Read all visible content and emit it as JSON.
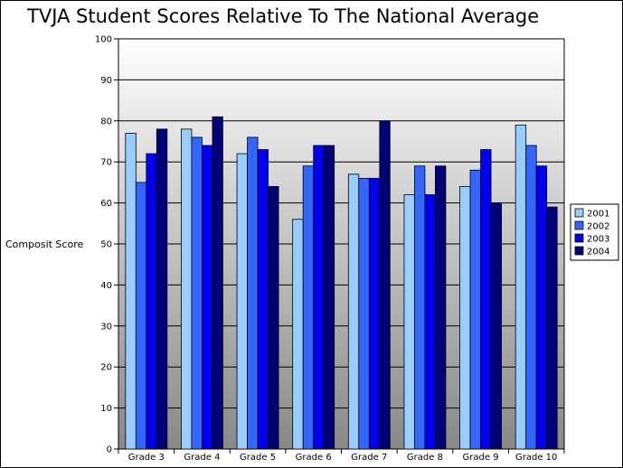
{
  "chart_data": {
    "type": "bar",
    "title": "TVJA Student Scores Relative To The National Average",
    "xlabel": "",
    "ylabel": "Composit Score",
    "ylim": [
      0,
      100
    ],
    "yticks": [
      0,
      10,
      20,
      30,
      40,
      50,
      60,
      70,
      80,
      90,
      100
    ],
    "grid": true,
    "legend_position": "right",
    "categories": [
      "Grade 3",
      "Grade 4",
      "Grade 5",
      "Grade 6",
      "Grade 7",
      "Grade 8",
      "Grade 9",
      "Grade 10"
    ],
    "series": [
      {
        "name": "2001",
        "color": "#99ccff",
        "values": [
          77,
          78,
          72,
          56,
          67,
          62,
          64,
          79
        ]
      },
      {
        "name": "2002",
        "color": "#3366ff",
        "values": [
          65,
          76,
          76,
          69,
          66,
          69,
          68,
          74
        ]
      },
      {
        "name": "2003",
        "color": "#0000ee",
        "values": [
          72,
          74,
          73,
          74,
          66,
          62,
          73,
          69
        ]
      },
      {
        "name": "2004",
        "color": "#000077",
        "values": [
          78,
          81,
          64,
          74,
          80,
          69,
          60,
          59
        ]
      }
    ],
    "background_gradient": [
      "#ffffff",
      "#888888"
    ]
  }
}
